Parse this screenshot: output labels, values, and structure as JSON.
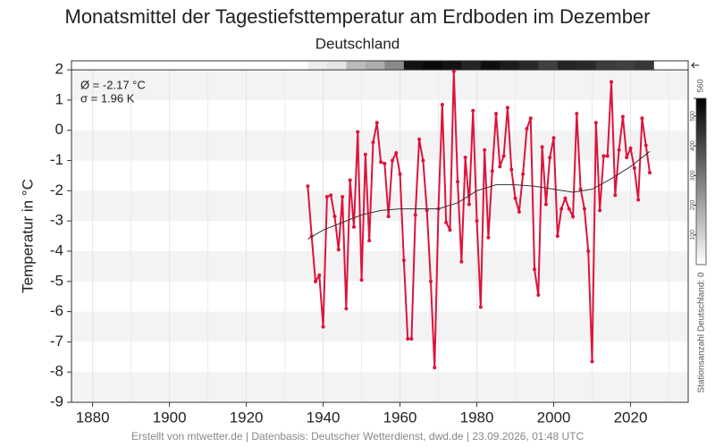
{
  "chart_data": {
    "type": "line",
    "title": "Monatsmittel der Tagestiefsttemperatur am Erdboden im Dezember",
    "subtitle": "Deutschland",
    "y_label": "Temperatur in °C",
    "annotations": [
      "Ø = -2.17 °C",
      "σ = 1.96 K"
    ],
    "footer": "Erstellt von mtwetter.de | Datenbasis: Deutscher Wetterdienst, dwd.de | 23.09.2026, 01:48 UTC",
    "xlim": [
      1874.5,
      2035
    ],
    "xticks": [
      1880,
      1900,
      1920,
      1940,
      1960,
      1980,
      2000,
      2020
    ],
    "ylim": [
      -9,
      2.3
    ],
    "yticks": [
      2,
      1,
      0,
      -1,
      -2,
      -3,
      -4,
      -5,
      -6,
      -7,
      -8,
      -9
    ],
    "grid": true,
    "series": [
      {
        "color": "#dc143c",
        "x": [
          1936,
          1937,
          1938,
          1939,
          1940,
          1941,
          1942,
          1943,
          1944,
          1945,
          1946,
          1947,
          1948,
          1949,
          1950,
          1951,
          1952,
          1953,
          1954,
          1955,
          1956,
          1957,
          1958,
          1959,
          1960,
          1961,
          1962,
          1963,
          1964,
          1965,
          1966,
          1967,
          1968,
          1969,
          1970,
          1971,
          1972,
          1973,
          1974,
          1975,
          1976,
          1977,
          1978,
          1979,
          1980,
          1981,
          1982,
          1983,
          1984,
          1985,
          1986,
          1987,
          1988,
          1989,
          1990,
          1991,
          1992,
          1993,
          1994,
          1995,
          1996,
          1997,
          1998,
          1999,
          2000,
          2001,
          2002,
          2003,
          2004,
          2005,
          2006,
          2007,
          2008,
          2009,
          2010,
          2011,
          2012,
          2013,
          2014,
          2015,
          2016,
          2017,
          2018,
          2019,
          2020,
          2021,
          2022,
          2023,
          2024,
          2025
        ],
        "values": [
          -1.85,
          -3.5,
          -5.0,
          -4.8,
          -6.5,
          -2.2,
          -2.15,
          -2.85,
          -3.95,
          -2.2,
          -5.9,
          -1.65,
          -3.2,
          -0.05,
          -4.95,
          -0.8,
          -3.65,
          -0.4,
          0.25,
          -1.05,
          -1.1,
          -2.85,
          -1.0,
          -0.75,
          -1.45,
          -4.3,
          -6.9,
          -6.9,
          -2.8,
          -0.3,
          -1.0,
          -2.65,
          -5.0,
          -7.85,
          -2.6,
          0.85,
          -3.05,
          -3.3,
          1.95,
          -1.7,
          -4.35,
          -0.9,
          -2.45,
          0.65,
          -3.0,
          -5.85,
          -0.65,
          -3.55,
          -1.35,
          0.55,
          -1.2,
          -0.85,
          0.75,
          -1.3,
          -2.25,
          -2.7,
          -1.45,
          0.05,
          0.4,
          -4.6,
          -5.45,
          -0.55,
          -2.45,
          -0.9,
          -0.25,
          -3.5,
          -2.6,
          -2.25,
          -2.6,
          -2.85,
          0.55,
          -1.95,
          -2.6,
          -4.0,
          -7.65,
          0.25,
          -2.65,
          -0.85,
          -0.85,
          1.6,
          -2.15,
          -0.65,
          0.45,
          -0.9,
          -0.6,
          -1.25,
          -2.3,
          0.4,
          -0.5,
          -1.4
        ]
      },
      {
        "color": "#333333",
        "x": [
          1936,
          1940,
          1945,
          1950,
          1955,
          1960,
          1965,
          1970,
          1975,
          1980,
          1985,
          1990,
          1995,
          2000,
          2005,
          2010,
          2015,
          2020,
          2025
        ],
        "values": [
          -3.6,
          -3.3,
          -3.05,
          -2.8,
          -2.65,
          -2.6,
          -2.6,
          -2.6,
          -2.4,
          -2.0,
          -1.8,
          -1.8,
          -1.85,
          -1.95,
          -2.05,
          -1.95,
          -1.6,
          -1.2,
          -0.7
        ]
      }
    ],
    "stations": {
      "x": [
        1936,
        1941,
        1946,
        1951,
        1956,
        1961,
        1966,
        1971,
        1976,
        1981,
        1986,
        1991,
        1996,
        2001,
        2006,
        2011,
        2016,
        2021
      ],
      "values": [
        40,
        60,
        150,
        180,
        260,
        520,
        540,
        520,
        480,
        530,
        500,
        470,
        420,
        480,
        470,
        430,
        420,
        440
      ]
    },
    "cbar": {
      "lim": [
        0,
        560
      ],
      "ticks": [
        100,
        200,
        300,
        400,
        500,
        560
      ],
      "label": "Stationsanzahl Deutschland: 0"
    }
  }
}
